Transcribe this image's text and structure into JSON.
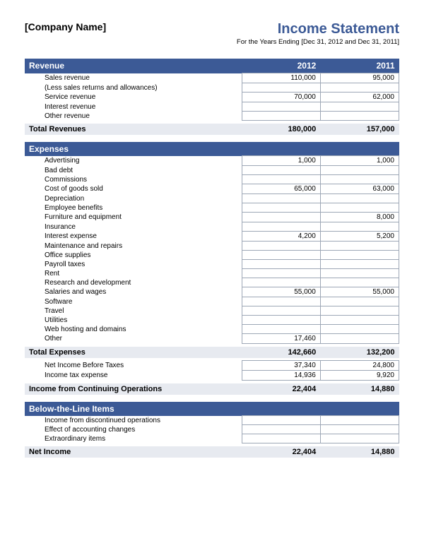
{
  "header": {
    "company_name": "[Company Name]",
    "title": "Income Statement",
    "subtitle": "For the Years Ending [Dec 31, 2012 and Dec 31, 2011]"
  },
  "colors": {
    "accent": "#3c5a96",
    "total_bg": "#e7eaf0",
    "cell_border": "#9da7b6",
    "background": "#ffffff",
    "text": "#000000"
  },
  "columns": {
    "year1": "2012",
    "year2": "2011"
  },
  "sections": [
    {
      "title": "Revenue",
      "rows": [
        {
          "label": "Sales revenue",
          "v1": "110,000",
          "v2": "95,000"
        },
        {
          "label": "(Less sales returns and allowances)",
          "v1": "",
          "v2": ""
        },
        {
          "label": "Service revenue",
          "v1": "70,000",
          "v2": "62,000"
        },
        {
          "label": "Interest revenue",
          "v1": "",
          "v2": ""
        },
        {
          "label": "Other revenue",
          "v1": "",
          "v2": ""
        }
      ],
      "total": {
        "label": "Total Revenues",
        "v1": "180,000",
        "v2": "157,000"
      }
    },
    {
      "title": "Expenses",
      "rows": [
        {
          "label": "Advertising",
          "v1": "1,000",
          "v2": "1,000"
        },
        {
          "label": "Bad debt",
          "v1": "",
          "v2": ""
        },
        {
          "label": "Commissions",
          "v1": "",
          "v2": ""
        },
        {
          "label": "Cost of goods sold",
          "v1": "65,000",
          "v2": "63,000"
        },
        {
          "label": "Depreciation",
          "v1": "",
          "v2": ""
        },
        {
          "label": "Employee benefits",
          "v1": "",
          "v2": ""
        },
        {
          "label": "Furniture and equipment",
          "v1": "",
          "v2": "8,000"
        },
        {
          "label": "Insurance",
          "v1": "",
          "v2": ""
        },
        {
          "label": "Interest expense",
          "v1": "4,200",
          "v2": "5,200"
        },
        {
          "label": "Maintenance and repairs",
          "v1": "",
          "v2": ""
        },
        {
          "label": "Office supplies",
          "v1": "",
          "v2": ""
        },
        {
          "label": "Payroll taxes",
          "v1": "",
          "v2": ""
        },
        {
          "label": "Rent",
          "v1": "",
          "v2": ""
        },
        {
          "label": "Research and development",
          "v1": "",
          "v2": ""
        },
        {
          "label": "Salaries and wages",
          "v1": "55,000",
          "v2": "55,000"
        },
        {
          "label": "Software",
          "v1": "",
          "v2": ""
        },
        {
          "label": "Travel",
          "v1": "",
          "v2": ""
        },
        {
          "label": "Utilities",
          "v1": "",
          "v2": ""
        },
        {
          "label": "Web hosting and domains",
          "v1": "",
          "v2": ""
        },
        {
          "label": "Other",
          "v1": "17,460",
          "v2": ""
        }
      ],
      "total": {
        "label": "Total Expenses",
        "v1": "142,660",
        "v2": "132,200"
      },
      "post_rows": [
        {
          "label": "Net Income Before Taxes",
          "v1": "37,340",
          "v2": "24,800"
        },
        {
          "label": "Income tax expense",
          "v1": "14,936",
          "v2": "9,920"
        }
      ],
      "post_total": {
        "label": "Income from Continuing Operations",
        "v1": "22,404",
        "v2": "14,880"
      }
    },
    {
      "title": "Below-the-Line Items",
      "rows": [
        {
          "label": "Income from discontinued operations",
          "v1": "",
          "v2": ""
        },
        {
          "label": "Effect of accounting changes",
          "v1": "",
          "v2": ""
        },
        {
          "label": "Extraordinary items",
          "v1": "",
          "v2": ""
        }
      ],
      "total": {
        "label": "Net Income",
        "v1": "22,404",
        "v2": "14,880"
      }
    }
  ]
}
